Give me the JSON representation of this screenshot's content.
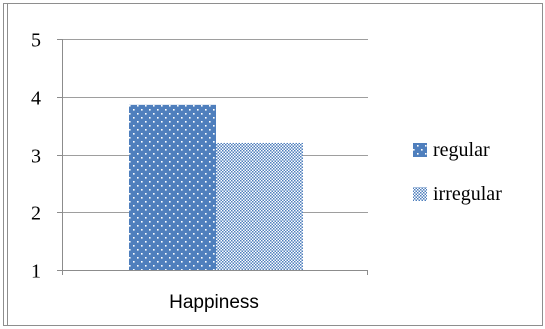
{
  "chart_data": {
    "type": "bar",
    "categories": [
      "Happiness"
    ],
    "series": [
      {
        "name": "regular",
        "values": [
          3.86
        ],
        "color": "#4f7fbd",
        "pattern": "dots"
      },
      {
        "name": "irregular",
        "values": [
          3.2
        ],
        "color": "#4f7fbd",
        "pattern": "fine-check"
      }
    ],
    "ylim": [
      1,
      5
    ],
    "yticks": [
      "1",
      "2",
      "3",
      "4",
      "5"
    ],
    "grid": true,
    "legend_position": "right",
    "title": "",
    "xlabel": "",
    "ylabel": ""
  },
  "colors": {
    "gridline": "#9e9e9e",
    "axis": "#8c8c8c",
    "frame": "#8e8e8e"
  }
}
